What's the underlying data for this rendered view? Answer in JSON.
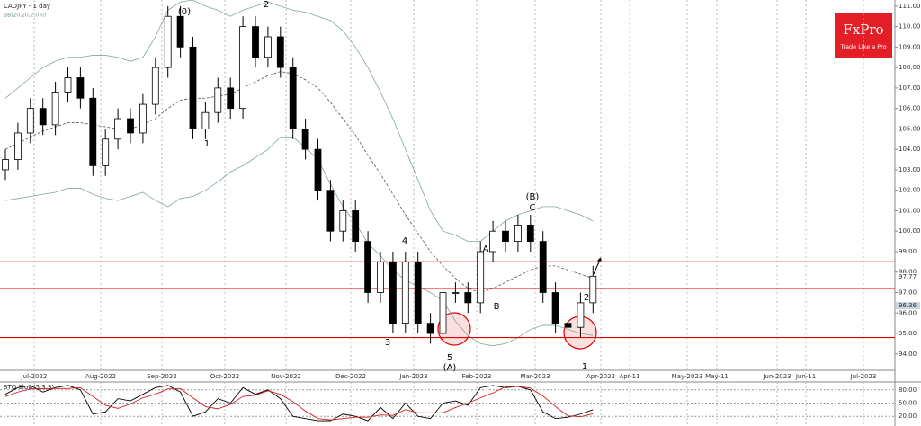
{
  "chart_data": {
    "type": "candlestick",
    "title": "CADJPY - 1 day",
    "subtitle": "BB(20,20,2,0,0)",
    "x_labels": [
      "Jul-2022",
      "Aug-2022",
      "Sep-2022",
      "Oct-2022",
      "Nov-2022",
      "Dec-2022",
      "Jan-2023",
      "Feb-2023",
      "Mar-2023",
      "Apr-2023",
      "Apr-11",
      "May-2023",
      "May-11",
      "Jun-2023",
      "Jun-11",
      "Jul-2023"
    ],
    "open": [
      103.0,
      103.5,
      104.8,
      106.0,
      105.2,
      106.8,
      107.5,
      106.5,
      103.2,
      104.5,
      105.5,
      104.8,
      106.2,
      108.0,
      110.5,
      109.0,
      105.0,
      105.8,
      107.0,
      106.0,
      110.0,
      108.5,
      109.5,
      108.0,
      105.0,
      104.0,
      102.0,
      100.0,
      101.0,
      99.5,
      97.0,
      98.5,
      95.5,
      98.5,
      95.5,
      95.0,
      97.0,
      97.0,
      96.5,
      99.0,
      100.0,
      99.5,
      100.3,
      99.5,
      97.0,
      95.5,
      95.3,
      96.5
    ],
    "high": [
      104.0,
      105.3,
      106.5,
      106.5,
      107.3,
      108.0,
      108.0,
      107.0,
      105.0,
      106.0,
      106.0,
      106.7,
      108.5,
      111.0,
      111.0,
      109.5,
      106.3,
      107.5,
      107.5,
      110.5,
      110.5,
      110.0,
      110.0,
      108.5,
      105.5,
      104.5,
      102.5,
      101.5,
      101.5,
      100.0,
      99.0,
      99.0,
      99.0,
      99.0,
      96.0,
      97.5,
      97.5,
      97.5,
      99.5,
      100.5,
      100.5,
      100.8,
      100.8,
      100.0,
      97.5,
      96.0,
      97.0,
      98.3
    ],
    "low": [
      102.5,
      103.0,
      104.3,
      104.7,
      104.7,
      106.3,
      106.0,
      102.7,
      102.7,
      104.0,
      104.3,
      104.3,
      105.7,
      107.5,
      108.5,
      104.5,
      104.5,
      105.3,
      105.5,
      105.5,
      108.0,
      108.0,
      107.5,
      104.5,
      103.5,
      101.5,
      99.5,
      99.5,
      99.0,
      96.5,
      96.5,
      95.0,
      95.0,
      95.0,
      94.5,
      94.5,
      96.5,
      96.0,
      96.0,
      98.5,
      99.0,
      99.0,
      99.0,
      96.5,
      95.0,
      94.8,
      94.8,
      96.0
    ],
    "close": [
      103.5,
      104.8,
      106.0,
      105.2,
      106.8,
      107.5,
      106.5,
      103.2,
      104.5,
      105.5,
      104.8,
      106.2,
      108.0,
      110.5,
      109.0,
      105.0,
      105.8,
      107.0,
      106.0,
      110.0,
      108.5,
      109.5,
      108.0,
      105.0,
      104.0,
      102.0,
      100.0,
      101.0,
      99.5,
      97.0,
      98.5,
      95.5,
      98.5,
      95.5,
      95.0,
      97.0,
      97.0,
      96.5,
      99.0,
      100.0,
      99.5,
      100.3,
      99.5,
      97.0,
      95.5,
      95.3,
      96.5,
      97.8
    ],
    "bands": [
      {
        "color": "#7fa898",
        "values": [
          106.5,
          107.0,
          107.5,
          108.0,
          108.3,
          108.5,
          108.5,
          108.6,
          108.6,
          108.5,
          108.3,
          108.5,
          109.5,
          110.8,
          111.2,
          111.3,
          111.0,
          110.8,
          110.5,
          110.8,
          111.0,
          111.2,
          111.0,
          110.8,
          110.7,
          110.5,
          110.3,
          109.8,
          109.0,
          108.0,
          106.8,
          105.5,
          104.0,
          102.5,
          101.0,
          100.0,
          99.8,
          99.5,
          99.5,
          100.0,
          100.5,
          100.8,
          101.0,
          101.2,
          101.2,
          101.0,
          100.8,
          100.5
        ]
      },
      {
        "color": "#555555",
        "values": [
          104,
          104.3,
          104.6,
          104.9,
          105.1,
          105.3,
          105.3,
          105.2,
          105.1,
          105.0,
          105.0,
          105.2,
          105.5,
          106.0,
          106.4,
          106.5,
          106.5,
          106.6,
          106.7,
          107.0,
          107.3,
          107.6,
          107.8,
          107.7,
          107.4,
          107.0,
          106.3,
          105.5,
          104.7,
          103.7,
          102.8,
          101.8,
          100.8,
          99.9,
          99.0,
          98.3,
          97.7,
          97.2,
          97.0,
          97.2,
          97.5,
          97.8,
          98.1,
          98.3,
          98.3,
          98.1,
          97.9,
          97.7
        ]
      },
      {
        "color": "#7fa898",
        "values": [
          101.5,
          101.6,
          101.7,
          101.8,
          101.9,
          102.1,
          102.1,
          101.8,
          101.6,
          101.5,
          101.7,
          101.9,
          101.5,
          101.2,
          101.6,
          101.7,
          102.0,
          102.4,
          102.9,
          103.2,
          103.6,
          104.0,
          104.6,
          104.6,
          104.1,
          103.5,
          102.3,
          101.2,
          100.4,
          99.4,
          98.8,
          98.1,
          97.6,
          97.3,
          97.0,
          96.6,
          95.6,
          94.9,
          94.5,
          94.4,
          94.5,
          94.8,
          95.2,
          95.4,
          95.4,
          95.2,
          95.0,
          94.9
        ]
      }
    ],
    "levels": [
      98.5,
      97.2,
      94.8
    ],
    "level_color": "#e00000",
    "price_labels": [
      {
        "value": 97.77,
        "label": "97.77"
      },
      {
        "value": 96.36,
        "label": "96.36"
      }
    ],
    "ylim": [
      93.2,
      111.3
    ],
    "yticks": [
      {
        "value": 94,
        "label": "94.00"
      },
      {
        "value": 95,
        "label": "95.00"
      },
      {
        "value": 96,
        "label": "96.00"
      },
      {
        "value": 97,
        "label": "97.00"
      },
      {
        "value": 98,
        "label": "98.00"
      },
      {
        "value": 99,
        "label": "99.00"
      },
      {
        "value": 100,
        "label": "100.00"
      },
      {
        "value": 101,
        "label": "101.00"
      },
      {
        "value": 102,
        "label": "102.00"
      },
      {
        "value": 103,
        "label": "103.00"
      },
      {
        "value": 104,
        "label": "104.00"
      },
      {
        "value": 105,
        "label": "105.00"
      },
      {
        "value": 106,
        "label": "106.00"
      },
      {
        "value": 107,
        "label": "107.00"
      },
      {
        "value": 108,
        "label": "108.00"
      },
      {
        "value": 109,
        "label": "109.00"
      },
      {
        "value": 110,
        "label": "110.00"
      },
      {
        "value": 111,
        "label": "111.00"
      }
    ],
    "annotations": [
      "(0)",
      "2",
      "1",
      "3",
      "4",
      "5",
      "(A)",
      "A",
      "B",
      "C",
      "(B)",
      "1",
      "2"
    ],
    "indicator": {
      "title": "STO Slow(5,3,3)",
      "ylim": [
        0,
        100
      ],
      "yticks": [
        {
          "value": 20,
          "label": "20.00"
        },
        {
          "value": 50,
          "label": "50.00"
        },
        {
          "value": 80,
          "label": "80.00"
        }
      ],
      "series": [
        {
          "color": "#000000",
          "values": [
            70,
            85,
            90,
            75,
            85,
            90,
            80,
            25,
            30,
            60,
            55,
            70,
            85,
            90,
            75,
            20,
            30,
            60,
            50,
            85,
            70,
            80,
            60,
            20,
            15,
            10,
            10,
            25,
            20,
            10,
            40,
            15,
            50,
            20,
            15,
            50,
            55,
            45,
            85,
            90,
            85,
            88,
            80,
            30,
            15,
            18,
            25,
            35
          ]
        },
        {
          "color": "#d02020",
          "values": [
            65,
            75,
            82,
            83,
            83,
            83,
            85,
            65,
            45,
            38,
            48,
            62,
            70,
            82,
            83,
            62,
            42,
            37,
            47,
            65,
            68,
            78,
            70,
            53,
            32,
            15,
            12,
            15,
            18,
            18,
            23,
            22,
            35,
            28,
            28,
            28,
            40,
            50,
            62,
            73,
            87,
            88,
            84,
            66,
            42,
            21,
            19,
            26
          ]
        }
      ]
    },
    "logo": {
      "name": "FxPro",
      "tagline": "Trade Like a Pro",
      "color": "#e41e26"
    }
  }
}
